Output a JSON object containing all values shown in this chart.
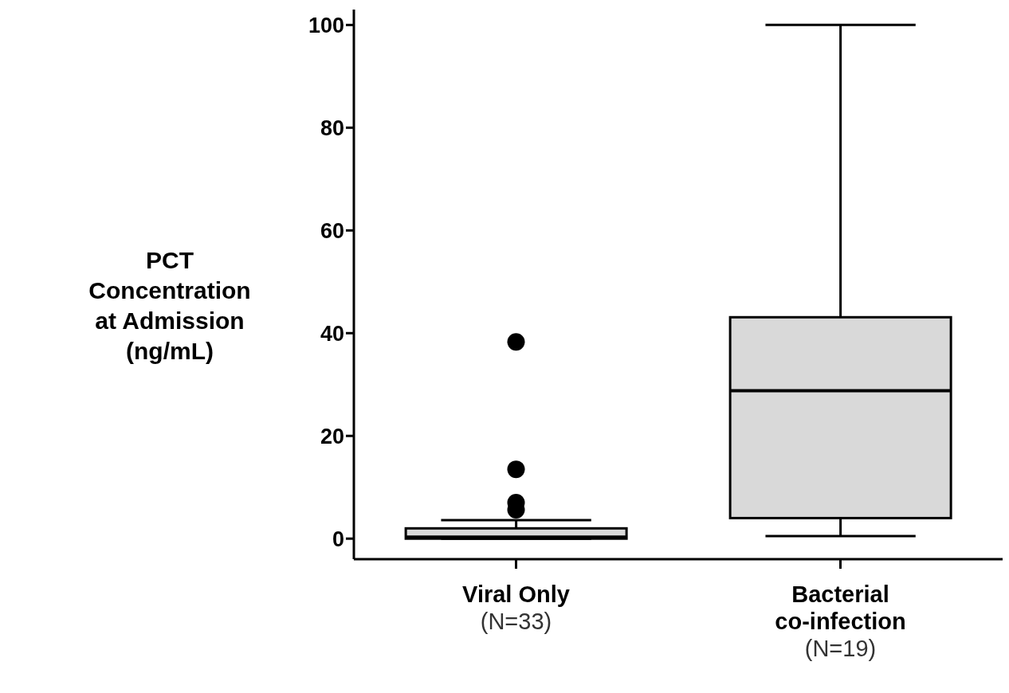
{
  "chart_data": {
    "type": "box",
    "ylabel": "PCT\nConcentration\nat Admission\n(ng/mL)",
    "categories": [
      "Viral  Only\n(N=33)",
      "Bacterial\nco-infection\n(N=19)"
    ],
    "color": "#d9d9d9",
    "boxes": [
      {
        "low": 0,
        "q1": 0,
        "median": 0.3,
        "q3": 2,
        "high": 3.6,
        "outliers": [
          38.3,
          13.5,
          7.0,
          5.6
        ]
      },
      {
        "low": 0.5,
        "q1": 4,
        "median": 28.8,
        "q3": 43.1,
        "high": 100
      }
    ],
    "ylim": [
      -4,
      103
    ],
    "yticks": [
      0,
      20,
      40,
      60,
      80,
      100
    ]
  }
}
